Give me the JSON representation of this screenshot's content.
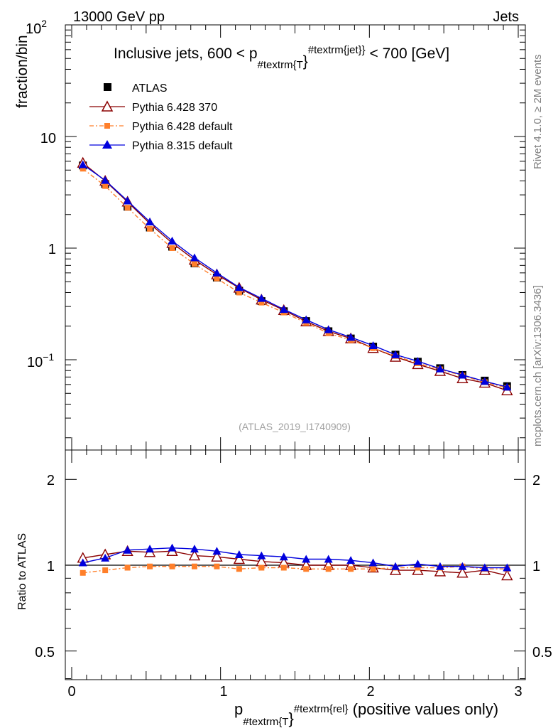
{
  "header": {
    "left": "13000 GeV pp",
    "right": "Jets"
  },
  "side": {
    "rivet": "Rivet 4.1.0, ≥ 2M events",
    "mcplots": "mcplots.cern.ch [arXiv:1306.3436]"
  },
  "chart_data": {
    "type": "line",
    "title": {
      "main": "Inclusive jets, 600 < p",
      "sub": "#textrm{T",
      "sup": "#textrm{jet}",
      "tail": "< 700 [GeV]"
    },
    "watermark": "(ATLAS_2019_I1740909)",
    "ylabel": "fraction/bin",
    "ratio_ylabel": "Ratio to ATLAS",
    "xlabel": {
      "main": "p",
      "sub": "#textrm{T",
      "sup": "#textrm{rel",
      "tail": "(positive values only)"
    },
    "xlim": [
      0,
      3
    ],
    "ylim": [
      0.018,
      100
    ],
    "ratio_ylim": [
      0.4,
      2.3
    ],
    "x_ticks": [
      "0",
      "1",
      "2",
      "3"
    ],
    "y_tick_labels": {
      "top": "10",
      "top_exp": "2",
      "ten": "10",
      "one": "1",
      "low": "10",
      "low_exp": "−1"
    },
    "ratio_ticks": [
      "2",
      "1",
      "0.5"
    ],
    "x": [
      0.075,
      0.225,
      0.375,
      0.525,
      0.675,
      0.825,
      0.975,
      1.125,
      1.275,
      1.425,
      1.575,
      1.725,
      1.875,
      2.025,
      2.175,
      2.325,
      2.475,
      2.625,
      2.775,
      2.925
    ],
    "legend": [
      "ATLAS",
      "Pythia 6.428 370",
      "Pythia 6.428 default",
      "Pythia 8.315 default"
    ],
    "series": [
      {
        "name": "ATLAS",
        "color": "#000000",
        "values": [
          5.5,
          3.75,
          2.35,
          1.53,
          1.03,
          0.73,
          0.545,
          0.415,
          0.335,
          0.272,
          0.222,
          0.18,
          0.155,
          0.131,
          0.111,
          0.096,
          0.084,
          0.073,
          0.065,
          0.058
        ]
      },
      {
        "name": "Pythia 6.428 370",
        "color": "#8b0000",
        "values": [
          5.8,
          4.0,
          2.6,
          1.66,
          1.11,
          0.785,
          0.58,
          0.44,
          0.345,
          0.278,
          0.22,
          0.18,
          0.155,
          0.127,
          0.106,
          0.091,
          0.079,
          0.068,
          0.062,
          0.053
        ]
      },
      {
        "name": "Pythia 6.428 default",
        "color": "#ff7f2a",
        "values": [
          5.15,
          3.6,
          2.3,
          1.49,
          1.0,
          0.72,
          0.535,
          0.4,
          0.325,
          0.265,
          0.214,
          0.173,
          0.15,
          0.127,
          0.108,
          0.093,
          0.082,
          0.072,
          0.063,
          0.056
        ]
      },
      {
        "name": "Pythia 8.315 default",
        "color": "#0000dd",
        "values": [
          5.6,
          4.05,
          2.65,
          1.72,
          1.16,
          0.82,
          0.6,
          0.445,
          0.355,
          0.283,
          0.228,
          0.186,
          0.159,
          0.134,
          0.111,
          0.097,
          0.083,
          0.073,
          0.064,
          0.057
        ]
      }
    ],
    "ratios": [
      {
        "name": "Pythia 6.428 370",
        "values": [
          1.06,
          1.09,
          1.12,
          1.11,
          1.12,
          1.08,
          1.07,
          1.05,
          1.03,
          1.02,
          1.0,
          1.0,
          1.0,
          0.98,
          0.96,
          0.96,
          0.95,
          0.94,
          0.96,
          0.92
        ]
      },
      {
        "name": "Pythia 6.428 default",
        "values": [
          0.94,
          0.96,
          0.98,
          0.99,
          0.99,
          0.99,
          0.99,
          0.97,
          0.98,
          0.98,
          0.97,
          0.97,
          0.97,
          0.97,
          0.98,
          0.98,
          0.98,
          0.99,
          0.97,
          0.97
        ]
      },
      {
        "name": "Pythia 8.315 default",
        "values": [
          1.02,
          1.06,
          1.13,
          1.14,
          1.15,
          1.14,
          1.12,
          1.09,
          1.08,
          1.07,
          1.05,
          1.05,
          1.04,
          1.02,
          0.99,
          1.01,
          0.99,
          0.99,
          0.98,
          0.98
        ]
      }
    ]
  }
}
